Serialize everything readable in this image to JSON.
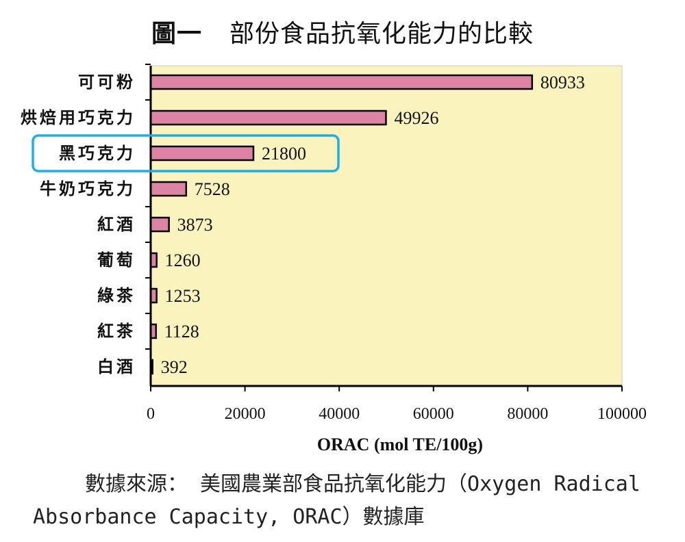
{
  "figure": {
    "number": "圖一",
    "title": "部份食品抗氧化能力的比較"
  },
  "source": {
    "line1": "數據來源： 美國農業部食品抗氧化能力（Oxygen",
    "line2": "Radical Absorbance Capacity, ORAC）數據庫"
  },
  "colors": {
    "plot_background": "#faf3bd",
    "bar_fill": "#dd83a4",
    "bar_stroke": "#000000",
    "highlight_box": "#1ab0e8"
  },
  "chart_data": {
    "type": "bar",
    "orientation": "horizontal",
    "categories": [
      "可可粉",
      "烘焙用巧克力",
      "黑巧克力",
      "牛奶巧克力",
      "紅酒",
      "葡萄",
      "綠茶",
      "紅茶",
      "白酒"
    ],
    "values": [
      80933,
      49926,
      21800,
      7528,
      3873,
      1260,
      1253,
      1128,
      392
    ],
    "value_labels": [
      "80933",
      "49926",
      "21800",
      "7528",
      "3873",
      "1260",
      "1253",
      "1128",
      "392"
    ],
    "xlabel": "ORAC (mol TE/100g)",
    "ylabel": "",
    "xlim": [
      0,
      100000
    ],
    "x_ticks": [
      0,
      20000,
      40000,
      60000,
      80000,
      100000
    ],
    "x_tick_labels": [
      "0",
      "20000",
      "40000",
      "60000",
      "80000",
      "100000"
    ],
    "highlighted_category": "黑巧克力",
    "grid": false
  }
}
